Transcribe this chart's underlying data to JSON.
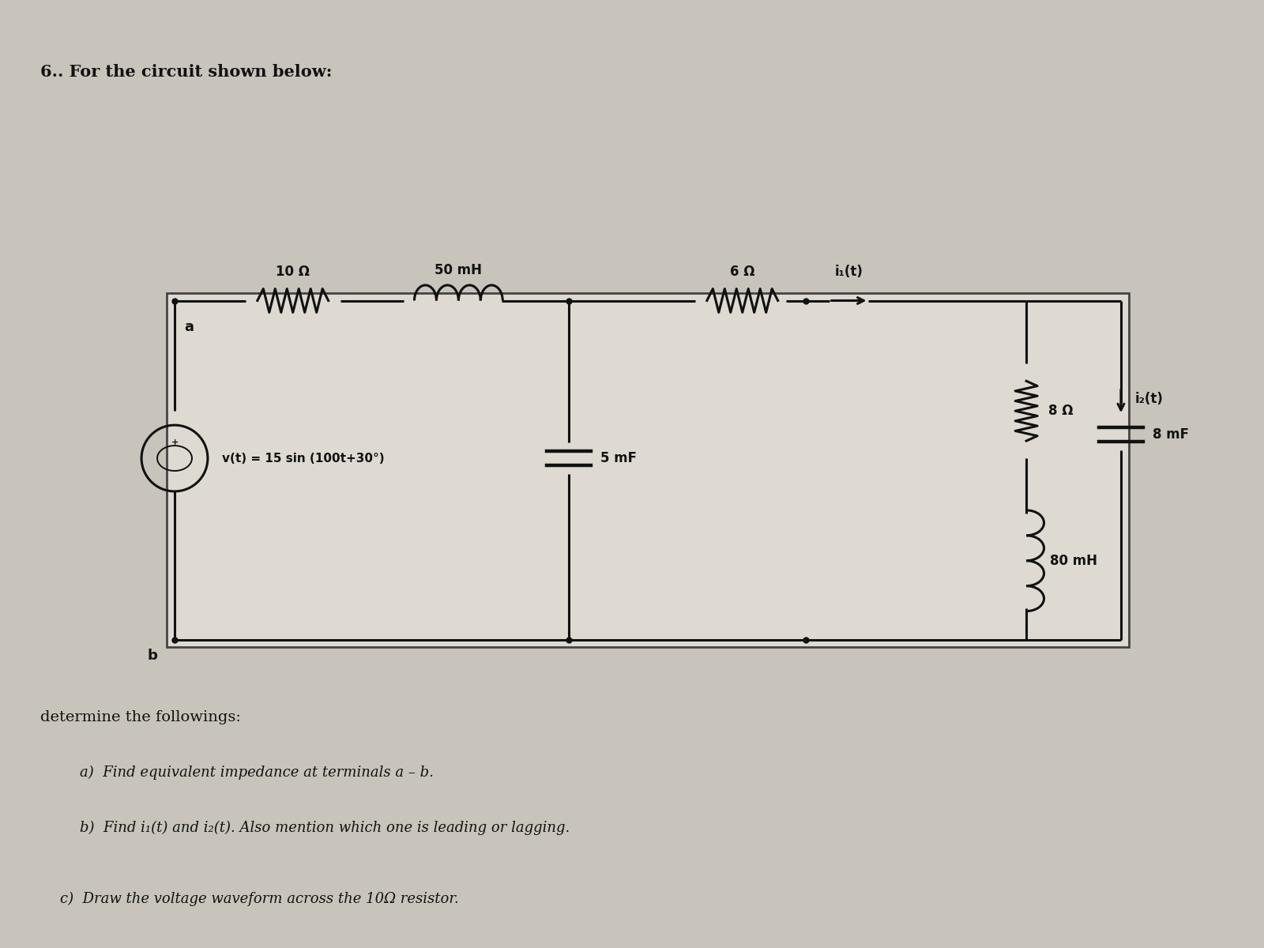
{
  "title": "6.. For the circuit shown below:",
  "bg_color": "#c8c4bc",
  "text_color": "#111111",
  "circuit_bg": "#d8d4cc",
  "questions": [
    "determine the followings:",
    "a)  Find equivalent impedance at terminals a – b.",
    "b)  Find i₁(t) and i₂(t). Also mention which one is leading or lagging.",
    "c)  Draw the voltage waveform across the 10Ω resistor."
  ],
  "R1": "10 Ω",
  "L1": "50 mH",
  "R2": "6 Ω",
  "i1": "i₁(t)",
  "R3": "8 Ω",
  "C2": "8 mF",
  "i2": "i₂(t)",
  "C1": "5 mF",
  "L2": "80 mH",
  "vs": "v(t) = 15 sin (100t+30°)"
}
